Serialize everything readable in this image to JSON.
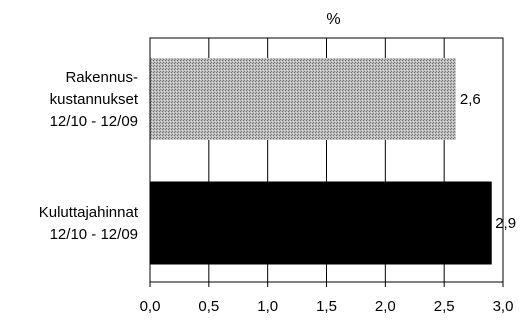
{
  "chart_data": {
    "type": "bar",
    "orientation": "horizontal",
    "title": "%",
    "xlabel": "",
    "ylabel": "",
    "categories": [
      [
        "Rakennus-",
        "kustannukset",
        "12/10 - 12/09"
      ],
      [
        "Kuluttajahinnat",
        "12/10 - 12/09"
      ]
    ],
    "values": [
      2.6,
      2.9
    ],
    "value_labels": [
      "2,6",
      "2,9"
    ],
    "xlim": [
      0,
      3.0
    ],
    "x_ticks": [
      0.0,
      0.5,
      1.0,
      1.5,
      2.0,
      2.5,
      3.0
    ],
    "x_tick_labels": [
      "0,0",
      "0,5",
      "1,0",
      "1,5",
      "2,0",
      "2,5",
      "3,0"
    ],
    "grid": "vertical",
    "legend": "none",
    "bar_styles": [
      "dotted-gray",
      "solid-black"
    ],
    "colors": {
      "bar_gray": "#a9a9a9",
      "bar_black": "#000000",
      "grid": "#000000",
      "frame": "#000000",
      "background": "#ffffff"
    }
  }
}
